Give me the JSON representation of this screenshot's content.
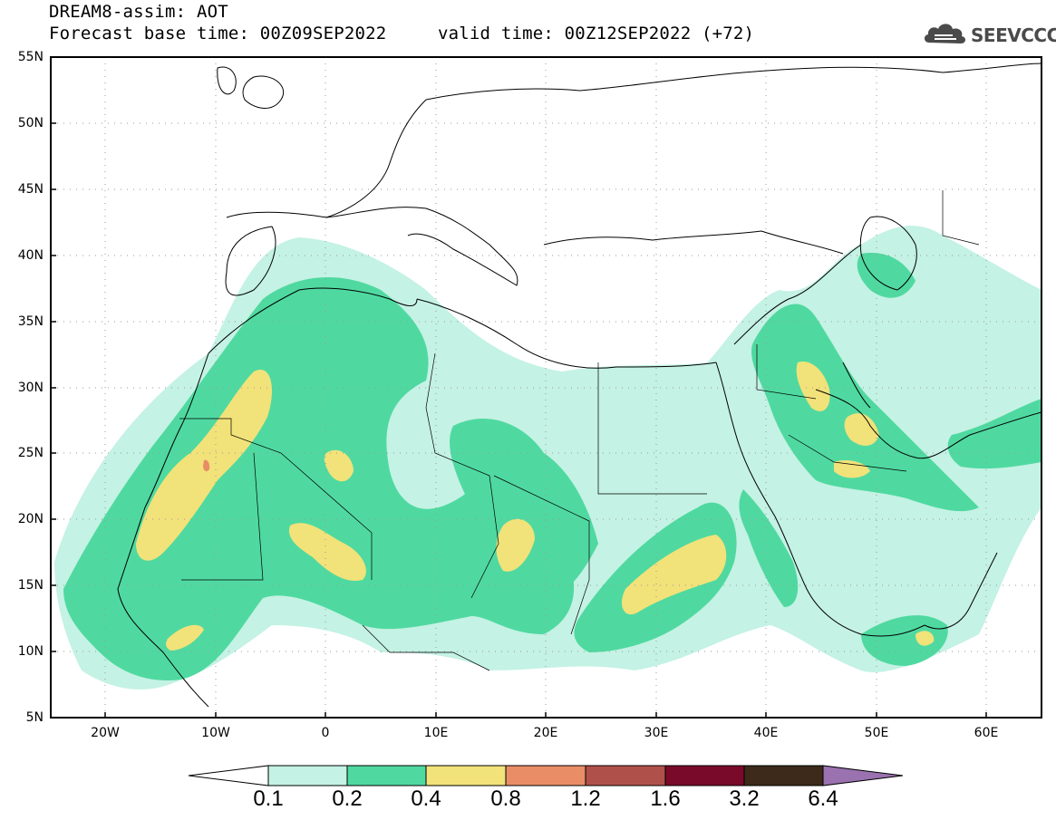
{
  "title": {
    "line1": "DREAM8-assim: AOT",
    "line2": "Forecast base time: 00Z09SEP2022",
    "line3": "valid time: 00Z12SEP2022 (+72)"
  },
  "logo": {
    "text": "SEEVCCC",
    "icon": "cloud-icon"
  },
  "axes": {
    "lat_labels": [
      "55N",
      "50N",
      "45N",
      "40N",
      "35N",
      "30N",
      "25N",
      "20N",
      "15N",
      "10N",
      "5N"
    ],
    "lon_labels": [
      "20W",
      "10W",
      "0",
      "10E",
      "20E",
      "30E",
      "40E",
      "50E",
      "60E"
    ],
    "lat_range": [
      5,
      55
    ],
    "lon_range": [
      -25,
      65
    ],
    "grid": "dotted"
  },
  "colorbar": {
    "levels": [
      "0.1",
      "0.2",
      "0.4",
      "0.8",
      "1.2",
      "1.6",
      "3.2",
      "6.4"
    ],
    "colors": [
      "#ffffff",
      "#c4f2e4",
      "#4fd9a0",
      "#f2e27a",
      "#e98d67",
      "#b0504a",
      "#7a0a2a",
      "#3d2a1a",
      "#9a72b0"
    ]
  }
}
